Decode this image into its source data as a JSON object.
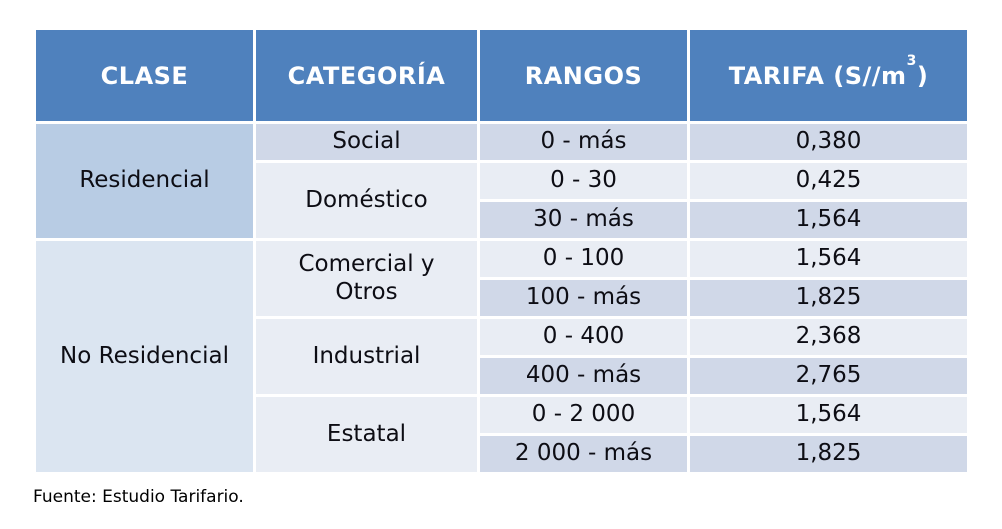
{
  "table": {
    "headers": [
      "CLASE",
      "CATEGORÍA",
      "RANGOS"
    ],
    "tarifa_header": {
      "prefix": "TARIFA (S//m",
      "sup": "3",
      "suffix": ")"
    },
    "rows": [
      {
        "clase": "Residencial",
        "clase_span": 3,
        "clase_color": "clase_residencial",
        "categoria": "Social",
        "categoria_span": 1,
        "categoria_color": "band_dark",
        "rango": "0 - más",
        "tarifa": "0,380",
        "band": "band_dark"
      },
      {
        "categoria": "Doméstico",
        "categoria_span": 2,
        "categoria_color": "band_light",
        "rango": "0 - 30",
        "tarifa": "0,425",
        "band": "band_light"
      },
      {
        "rango": "30 - más",
        "tarifa": "1,564",
        "band": "band_dark"
      },
      {
        "clase": "No Residencial",
        "clase_span": 6,
        "clase_color": "clase_no_residencial",
        "categoria": "Comercial y Otros",
        "categoria_span": 2,
        "categoria_color": "band_light",
        "rango": "0 - 100",
        "tarifa": "1,564",
        "band": "band_light"
      },
      {
        "rango": "100 - más",
        "tarifa": "1,825",
        "band": "band_dark"
      },
      {
        "categoria": "Industrial",
        "categoria_span": 2,
        "categoria_color": "band_light",
        "rango": "0 - 400",
        "tarifa": "2,368",
        "band": "band_light"
      },
      {
        "rango": "400 - más",
        "tarifa": "2,765",
        "band": "band_dark"
      },
      {
        "categoria": "Estatal",
        "categoria_span": 2,
        "categoria_color": "band_light",
        "rango": "0 - 2 000",
        "tarifa": "1,564",
        "band": "band_light"
      },
      {
        "rango": "2 000 - más",
        "tarifa": "1,825",
        "band": "band_dark"
      }
    ]
  },
  "footer": {
    "source": "Fuente: Estudio Tarifario."
  },
  "colors": {
    "header_bg": "#4f81bd",
    "header_text": "#ffffff",
    "band_dark": "#d0d8e8",
    "band_light": "#e9edf4",
    "clase_residencial": "#b8cce4",
    "clase_no_residencial": "#dbe5f1",
    "body_text": "#0d0d14"
  }
}
